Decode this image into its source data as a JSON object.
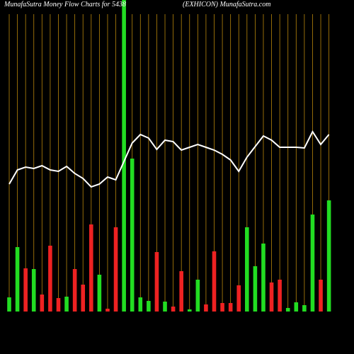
{
  "chart_data": {
    "type": "money-flow",
    "title": "MunafaSutra  Money Flow  Charts for 5438",
    "subtitle": "(EXHICON) MunafaSutra.com",
    "background": "#000000",
    "guide_color": "#b8860b",
    "categories": [
      null,
      null,
      null,
      null,
      null,
      null,
      null,
      null,
      null,
      null,
      null,
      null,
      null,
      null,
      null,
      null,
      null,
      null,
      null,
      null,
      null,
      null,
      null,
      null,
      null,
      null,
      null,
      null,
      null,
      null,
      null,
      null,
      null,
      null,
      null,
      null,
      null,
      null,
      null,
      null
    ],
    "ylim": [
      0,
      440
    ],
    "bars": {
      "values": [
        20,
        91,
        61,
        60,
        24,
        93,
        19,
        21,
        60,
        38,
        123,
        52,
        4,
        119,
        440,
        216,
        20,
        15,
        84,
        14,
        7,
        57,
        3,
        45,
        10,
        85,
        12,
        12,
        37,
        119,
        64,
        96,
        41,
        45,
        5,
        13,
        9,
        137,
        45,
        157
      ],
      "colors": [
        "#22dd22",
        "#22dd22",
        "#ee2222",
        "#22dd22",
        "#ee2222",
        "#ee2222",
        "#ee2222",
        "#22dd22",
        "#ee2222",
        "#ee2222",
        "#ee2222",
        "#22dd22",
        "#ee2222",
        "#ee2222",
        "#22dd22",
        "#22dd22",
        "#22dd22",
        "#22dd22",
        "#ee2222",
        "#22dd22",
        "#ee2222",
        "#ee2222",
        "#22dd22",
        "#22dd22",
        "#ee2222",
        "#ee2222",
        "#ee2222",
        "#ee2222",
        "#ee2222",
        "#22dd22",
        "#22dd22",
        "#22dd22",
        "#ee2222",
        "#ee2222",
        "#22dd22",
        "#22dd22",
        "#22dd22",
        "#22dd22",
        "#ee2222",
        "#22dd22"
      ]
    },
    "line": {
      "color": "#ffffff",
      "values": [
        180,
        200,
        204,
        202,
        206,
        200,
        198,
        205,
        195,
        188,
        176,
        180,
        190,
        186,
        212,
        238,
        250,
        245,
        229,
        242,
        240,
        228,
        232,
        236,
        232,
        228,
        222,
        214,
        198,
        218,
        233,
        248,
        242,
        232,
        232,
        232,
        231,
        254,
        236,
        250
      ]
    }
  }
}
